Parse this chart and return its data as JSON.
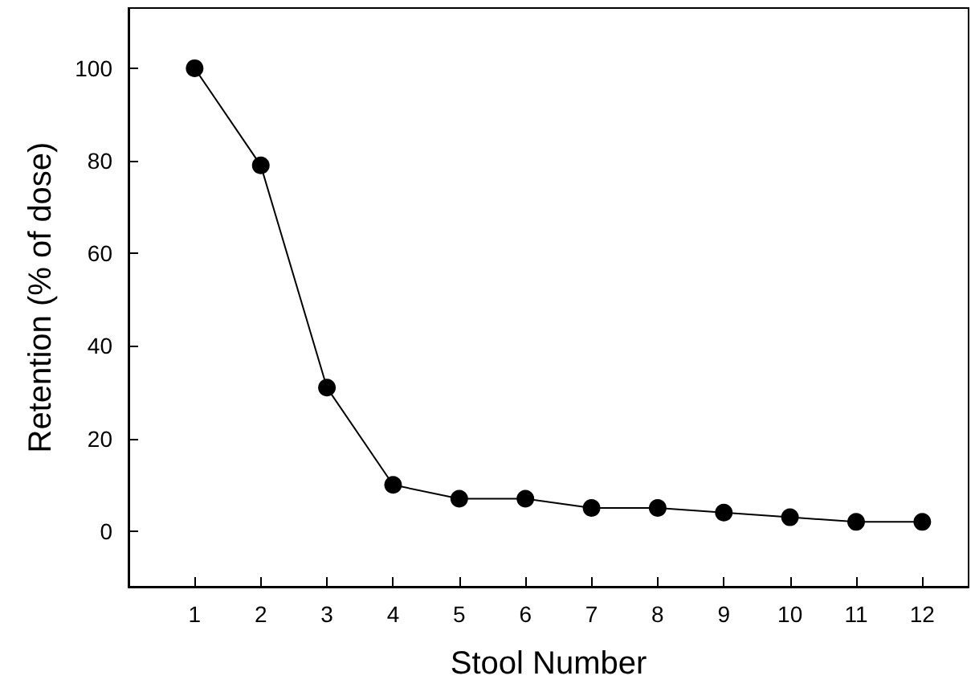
{
  "chart_data": {
    "type": "line",
    "xlabel": "Stool Number",
    "ylabel": "Retention (% of dose)",
    "x": [
      1,
      2,
      3,
      4,
      5,
      6,
      7,
      8,
      9,
      10,
      11,
      12
    ],
    "series": [
      {
        "color": "#000000",
        "values": [
          100,
          79,
          31,
          10,
          7,
          7,
          5,
          5,
          4,
          3,
          2,
          2
        ]
      }
    ],
    "xlim": [
      0,
      12.7
    ],
    "xticks": [
      1,
      2,
      3,
      4,
      5,
      6,
      7,
      8,
      9,
      10,
      11,
      12
    ],
    "ylim": [
      -12,
      113
    ],
    "yticks": [
      0,
      20,
      40,
      60,
      80,
      100
    ],
    "grid": false,
    "marker": "circle",
    "line_style": "solid"
  }
}
